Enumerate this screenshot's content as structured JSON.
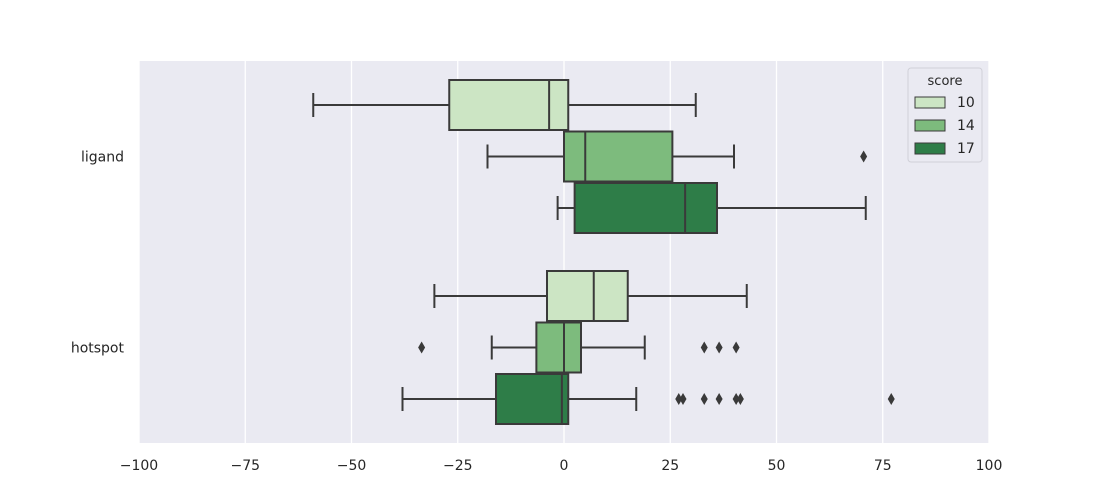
{
  "chart_data": {
    "type": "boxplot",
    "orientation": "horizontal",
    "categories": [
      "ligand",
      "hotspot"
    ],
    "xlim": [
      -100,
      100
    ],
    "xticks": [
      -100,
      -75,
      -50,
      -25,
      0,
      25,
      50,
      75,
      100
    ],
    "xtick_labels": [
      "−100",
      "−75",
      "−50",
      "−25",
      "0",
      "25",
      "50",
      "75",
      "100"
    ],
    "grid": true,
    "legend": {
      "title": "score",
      "placement": "top-right",
      "entries": [
        "10",
        "14",
        "17"
      ]
    },
    "colors": [
      "#cce5c4",
      "#7dbb7d",
      "#2e7d48"
    ],
    "edge_color": "#3a3a3a",
    "background_color": "#eaeaf2",
    "series": [
      {
        "name": "10",
        "boxes": [
          {
            "category": "ligand",
            "whisker_low": -59,
            "q1": -27,
            "median": -3.5,
            "q3": 1,
            "whisker_high": 31,
            "outliers": []
          },
          {
            "category": "hotspot",
            "whisker_low": -30.5,
            "q1": -4,
            "median": 7,
            "q3": 15,
            "whisker_high": 43,
            "outliers": []
          }
        ]
      },
      {
        "name": "14",
        "boxes": [
          {
            "category": "ligand",
            "whisker_low": -18,
            "q1": 0,
            "median": 5,
            "q3": 25.5,
            "whisker_high": 40,
            "outliers": [
              70.5
            ]
          },
          {
            "category": "hotspot",
            "whisker_low": -17,
            "q1": -6.5,
            "median": 0,
            "q3": 4,
            "whisker_high": 19,
            "outliers": [
              -33.5,
              33,
              36.5,
              40.5
            ]
          }
        ]
      },
      {
        "name": "17",
        "boxes": [
          {
            "category": "ligand",
            "whisker_low": -1.5,
            "q1": 2.5,
            "median": 28.5,
            "q3": 36,
            "whisker_high": 71,
            "outliers": []
          },
          {
            "category": "hotspot",
            "whisker_low": -38,
            "q1": -16,
            "median": -0.5,
            "q3": 1,
            "whisker_high": 17,
            "outliers": [
              27,
              28,
              33,
              36.5,
              40.5,
              41.5,
              77
            ]
          }
        ]
      }
    ]
  }
}
